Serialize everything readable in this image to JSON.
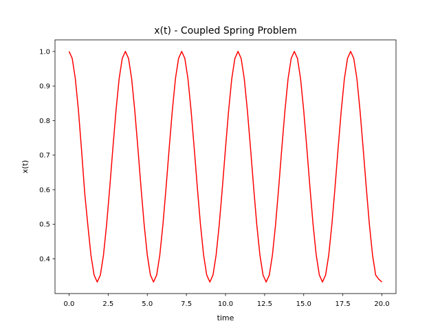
{
  "chart_data": {
    "type": "line",
    "title": "x(t) - Coupled Spring Problem",
    "xlabel": "time",
    "ylabel": "x(t)",
    "xlim": [
      -0.9,
      20.9
    ],
    "ylim": [
      0.2995,
      1.0335
    ],
    "xticks": [
      0.0,
      2.5,
      5.0,
      7.5,
      10.0,
      12.5,
      15.0,
      17.5,
      20.0
    ],
    "xtick_labels": [
      "0.0",
      "2.5",
      "5.0",
      "7.5",
      "10.0",
      "12.5",
      "15.0",
      "17.5",
      "20.0"
    ],
    "yticks": [
      0.4,
      0.5,
      0.6,
      0.7,
      0.8,
      0.9,
      1.0
    ],
    "ytick_labels": [
      "0.4",
      "0.5",
      "0.6",
      "0.7",
      "0.8",
      "0.9",
      "1.0"
    ],
    "grid": false,
    "series": [
      {
        "color": "#ff0000",
        "x": [
          0.0,
          0.2,
          0.4,
          0.6,
          0.8,
          1.0,
          1.2,
          1.4,
          1.6,
          1.8,
          2.0,
          2.2,
          2.4,
          2.6,
          2.8,
          3.0,
          3.2,
          3.4,
          3.6,
          3.8,
          4.0,
          4.2,
          4.4,
          4.6,
          4.8,
          5.0,
          5.2,
          5.4,
          5.6,
          5.8,
          6.0,
          6.2,
          6.4,
          6.6,
          6.8,
          7.0,
          7.2,
          7.4,
          7.6,
          7.8,
          8.0,
          8.2,
          8.4,
          8.6,
          8.8,
          9.0,
          9.2,
          9.4,
          9.6,
          9.8,
          10.0,
          10.2,
          10.4,
          10.6,
          10.8,
          11.0,
          11.2,
          11.4,
          11.6,
          11.8,
          12.0,
          12.2,
          12.4,
          12.6,
          12.8,
          13.0,
          13.2,
          13.4,
          13.6,
          13.8,
          14.0,
          14.2,
          14.4,
          14.6,
          14.8,
          15.0,
          15.2,
          15.4,
          15.6,
          15.8,
          16.0,
          16.2,
          16.4,
          16.6,
          16.8,
          17.0,
          17.2,
          17.4,
          17.6,
          17.8,
          18.0,
          18.2,
          18.4,
          18.6,
          18.8,
          19.0,
          19.2,
          19.4,
          19.6,
          19.8,
          20.0
        ],
        "y": [
          1.0,
          0.98,
          0.921,
          0.829,
          0.713,
          0.59,
          0.497,
          0.41,
          0.353,
          0.333,
          0.353,
          0.411,
          0.499,
          0.606,
          0.72,
          0.829,
          0.921,
          0.98,
          1.0,
          0.98,
          0.921,
          0.829,
          0.72,
          0.606,
          0.499,
          0.411,
          0.353,
          0.333,
          0.353,
          0.411,
          0.499,
          0.606,
          0.72,
          0.829,
          0.921,
          0.98,
          1.0,
          0.98,
          0.921,
          0.829,
          0.72,
          0.606,
          0.499,
          0.411,
          0.353,
          0.333,
          0.353,
          0.411,
          0.499,
          0.606,
          0.72,
          0.829,
          0.921,
          0.98,
          1.0,
          0.98,
          0.921,
          0.829,
          0.72,
          0.606,
          0.499,
          0.411,
          0.353,
          0.333,
          0.353,
          0.411,
          0.499,
          0.606,
          0.72,
          0.829,
          0.921,
          0.98,
          1.0,
          0.98,
          0.921,
          0.829,
          0.72,
          0.606,
          0.499,
          0.411,
          0.353,
          0.333,
          0.353,
          0.411,
          0.499,
          0.606,
          0.72,
          0.829,
          0.921,
          0.98,
          1.0,
          0.98,
          0.921,
          0.829,
          0.72,
          0.606,
          0.499,
          0.411,
          0.353,
          0.341,
          0.333
        ]
      }
    ]
  }
}
